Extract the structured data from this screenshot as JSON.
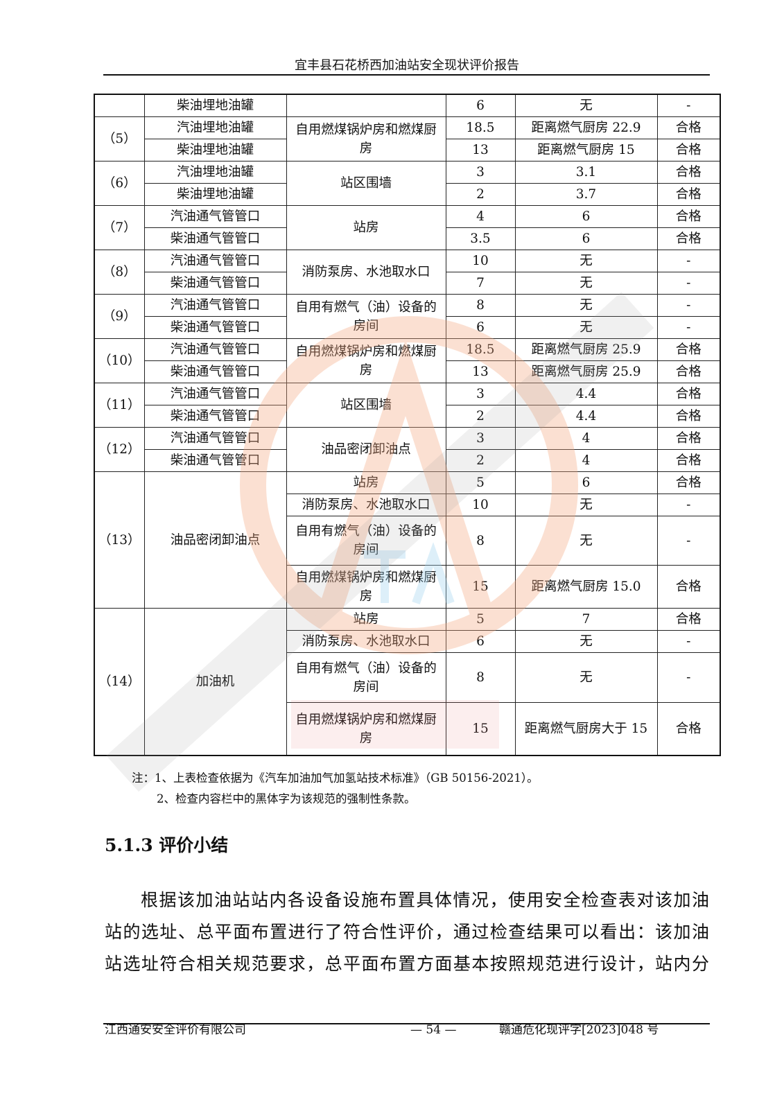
{
  "header": {
    "title": "宜丰县石花桥西加油站安全现状评价报告"
  },
  "table": {
    "rows": [
      [
        {
          "t": ""
        },
        {
          "t": "柴油埋地油罐"
        },
        {
          "t": ""
        },
        {
          "t": "6"
        },
        {
          "t": "无"
        },
        {
          "t": "-"
        }
      ],
      [
        {
          "t": "（5）",
          "rs": 2
        },
        {
          "t": "汽油埋地油罐"
        },
        {
          "t": "自用燃煤锅炉房和燃煤厨房",
          "rs": 2
        },
        {
          "t": "18.5"
        },
        {
          "t": "距离燃气厨房 22.9"
        },
        {
          "t": "合格"
        }
      ],
      [
        {
          "t": "柴油埋地油罐"
        },
        {
          "t": "13"
        },
        {
          "t": "距离燃气厨房 15"
        },
        {
          "t": "合格"
        }
      ],
      [
        {
          "t": "（6）",
          "rs": 2
        },
        {
          "t": "汽油埋地油罐"
        },
        {
          "t": "站区围墙",
          "rs": 2
        },
        {
          "t": "3"
        },
        {
          "t": "3.1"
        },
        {
          "t": "合格"
        }
      ],
      [
        {
          "t": "柴油埋地油罐"
        },
        {
          "t": "2"
        },
        {
          "t": "3.7"
        },
        {
          "t": "合格"
        }
      ],
      [
        {
          "t": "（7）",
          "rs": 2
        },
        {
          "t": "汽油通气管管口"
        },
        {
          "t": "站房",
          "rs": 2
        },
        {
          "t": "4"
        },
        {
          "t": "6"
        },
        {
          "t": "合格"
        }
      ],
      [
        {
          "t": "柴油通气管管口"
        },
        {
          "t": "3.5"
        },
        {
          "t": "6"
        },
        {
          "t": "合格"
        }
      ],
      [
        {
          "t": "（8）",
          "rs": 2
        },
        {
          "t": "汽油通气管管口"
        },
        {
          "t": "消防泵房、水池取水口",
          "rs": 2
        },
        {
          "t": "10"
        },
        {
          "t": "无"
        },
        {
          "t": "-"
        }
      ],
      [
        {
          "t": "柴油通气管管口"
        },
        {
          "t": "7"
        },
        {
          "t": "无"
        },
        {
          "t": "-"
        }
      ],
      [
        {
          "t": "（9）",
          "rs": 2
        },
        {
          "t": "汽油通气管管口"
        },
        {
          "t": "自用有燃气（油）设备的房间",
          "rs": 2
        },
        {
          "t": "8"
        },
        {
          "t": "无"
        },
        {
          "t": "-"
        }
      ],
      [
        {
          "t": "柴油通气管管口"
        },
        {
          "t": "6"
        },
        {
          "t": "无"
        },
        {
          "t": "-"
        }
      ],
      [
        {
          "t": "（10）",
          "rs": 2
        },
        {
          "t": "汽油通气管管口"
        },
        {
          "t": "自用燃煤锅炉房和燃煤厨房",
          "rs": 2
        },
        {
          "t": "18.5"
        },
        {
          "t": "距离燃气厨房 25.9"
        },
        {
          "t": "合格"
        }
      ],
      [
        {
          "t": "柴油通气管管口"
        },
        {
          "t": "13"
        },
        {
          "t": "距离燃气厨房 25.9"
        },
        {
          "t": "合格"
        }
      ],
      [
        {
          "t": "（11）",
          "rs": 2
        },
        {
          "t": "汽油通气管管口"
        },
        {
          "t": "站区围墙",
          "rs": 2
        },
        {
          "t": "3"
        },
        {
          "t": "4.4"
        },
        {
          "t": "合格"
        }
      ],
      [
        {
          "t": "柴油通气管管口"
        },
        {
          "t": "2"
        },
        {
          "t": "4.4"
        },
        {
          "t": "合格"
        }
      ],
      [
        {
          "t": "（12）",
          "rs": 2
        },
        {
          "t": "汽油通气管管口"
        },
        {
          "t": "油品密闭卸油点",
          "rs": 2
        },
        {
          "t": "3"
        },
        {
          "t": "4"
        },
        {
          "t": "合格"
        }
      ],
      [
        {
          "t": "柴油通气管管口"
        },
        {
          "t": "2"
        },
        {
          "t": "4"
        },
        {
          "t": "合格"
        }
      ],
      [
        {
          "t": "（13）",
          "rs": 4
        },
        {
          "t": "油品密闭卸油点",
          "rs": 4
        },
        {
          "t": "站房"
        },
        {
          "t": "5"
        },
        {
          "t": "6"
        },
        {
          "t": "合格"
        }
      ],
      [
        {
          "t": "消防泵房、水池取水口"
        },
        {
          "t": "10"
        },
        {
          "t": "无"
        },
        {
          "t": "-"
        }
      ],
      [
        {
          "t": "自用有燃气（油）设备的房间"
        },
        {
          "t": "8"
        },
        {
          "t": "无"
        },
        {
          "t": "-"
        }
      ],
      [
        {
          "t": "自用燃煤锅炉房和燃煤厨房"
        },
        {
          "t": "15"
        },
        {
          "t": "距离燃气厨房 15.0"
        },
        {
          "t": "合格"
        }
      ],
      [
        {
          "t": "（14）",
          "rs": 4
        },
        {
          "t": "加油机",
          "rs": 4
        },
        {
          "t": "站房"
        },
        {
          "t": "5"
        },
        {
          "t": "7"
        },
        {
          "t": "合格"
        }
      ],
      [
        {
          "t": "消防泵房、水池取水口"
        },
        {
          "t": "6"
        },
        {
          "t": "无"
        },
        {
          "t": "-"
        }
      ],
      [
        {
          "t": "自用有燃气（油）设备的房间"
        },
        {
          "t": "8"
        },
        {
          "t": "无"
        },
        {
          "t": "-"
        }
      ],
      [
        {
          "t": "自用燃煤锅炉房和燃煤厨房"
        },
        {
          "t": "15"
        },
        {
          "t": "距离燃气厨房大于 15"
        },
        {
          "t": "合格"
        }
      ]
    ]
  },
  "notes": [
    "注：1、上表检查依据为《汽车加油加气加氢站技术标准》（GB 50156-2021）。",
    "2、检查内容栏中的黑体字为该规范的强制性条款。"
  ],
  "section": {
    "heading": "5.1.3 评价小结"
  },
  "paragraph": {
    "lines": [
      "根据该加油站站内各设备设施布置具体情况，使用安全检查表对该加油",
      "站的选址、总平面布置进行了符合性评价，通过检查结果可以看出：该加油",
      "站选址符合相关规范要求，总平面布置方面基本按照规范进行设计，站内分"
    ]
  },
  "footer": {
    "company": "江西通安安全评价有限公司",
    "page": "— 54 —",
    "doc_no": "赣通危化现评字[2023]048 号"
  },
  "watermark": {
    "text": "江西通安安全评价有限公司",
    "logo_text": "江西通安",
    "logo_colors": {
      "ring": "#f4a77f",
      "text": "#f08a8a",
      "letters": "#9fd3ef"
    }
  }
}
